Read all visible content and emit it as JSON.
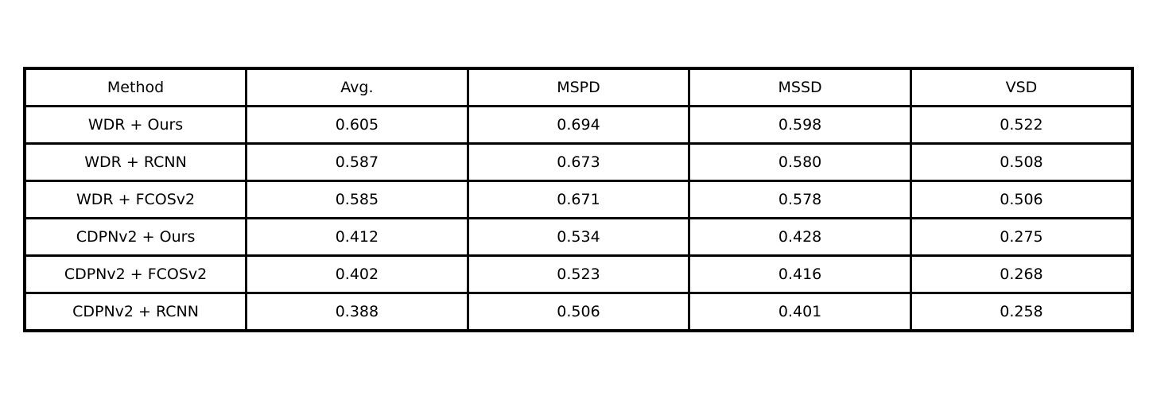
{
  "chart_data": {
    "type": "table",
    "columns": [
      "Method",
      "Avg.",
      "MSPD",
      "MSSD",
      "VSD"
    ],
    "rows": [
      [
        "WDR + Ours",
        "0.605",
        "0.694",
        "0.598",
        "0.522"
      ],
      [
        "WDR + RCNN",
        "0.587",
        "0.673",
        "0.580",
        "0.508"
      ],
      [
        "WDR + FCOSv2",
        "0.585",
        "0.671",
        "0.578",
        "0.506"
      ],
      [
        "CDPNv2 + Ours",
        "0.412",
        "0.534",
        "0.428",
        "0.275"
      ],
      [
        "CDPNv2 + FCOSv2",
        "0.402",
        "0.523",
        "0.416",
        "0.268"
      ],
      [
        "CDPNv2 + RCNN",
        "0.388",
        "0.506",
        "0.401",
        "0.258"
      ]
    ]
  }
}
